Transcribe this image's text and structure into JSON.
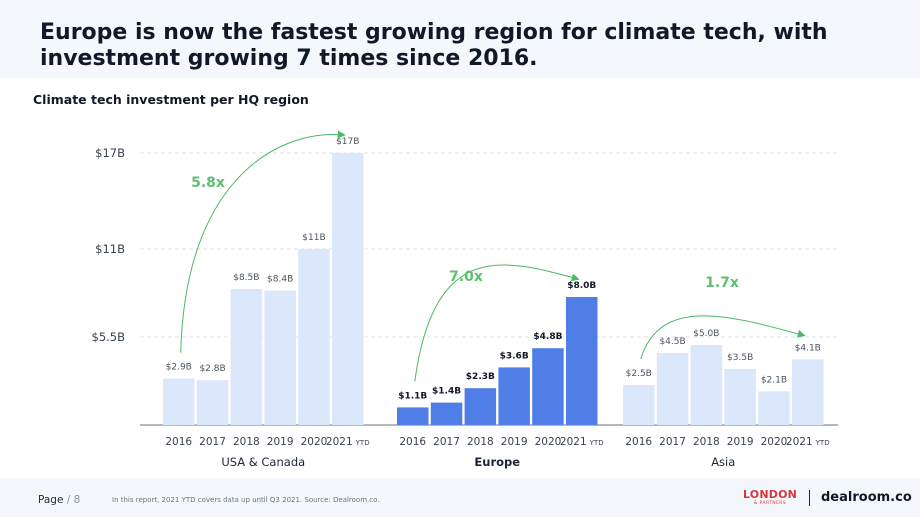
{
  "headline": "Europe is now the fastest growing region for climate tech, with investment growing 7 times since 2016.",
  "chart_title": "Climate tech investment per HQ region",
  "footer": {
    "page_word": "Page",
    "page_sep": "/",
    "page_number": "8",
    "note": "In this report, 2021 YTD covers data up until Q3 2021. Source: Dealroom.co.",
    "logo_primary": "LONDON",
    "logo_secondary": "& PARTNERS",
    "logo_dealroom": "dealroom.co"
  },
  "colors": {
    "light_bar": "#dbe7fb",
    "highlight_bar": "#4f7fe6",
    "arrow": "#4db866",
    "multiplier": "#5fbf72",
    "grid": "#d4d9e1"
  },
  "chart_data": {
    "type": "bar",
    "title": "Climate tech investment per HQ region",
    "ylabel": "",
    "xlabel": "",
    "unit": "B",
    "ylim": [
      0,
      17
    ],
    "y_ticks": [
      {
        "value": 5.5,
        "label": "$5.5B"
      },
      {
        "value": 11,
        "label": "$11B"
      },
      {
        "value": 17,
        "label": "$17B"
      }
    ],
    "grid": true,
    "groups": [
      {
        "name": "USA & Canada",
        "highlight": false,
        "multiplier": "5.8x",
        "categories": [
          "2016",
          "2017",
          "2018",
          "2019",
          "2020",
          "2021"
        ],
        "category_suffix": [
          "",
          "",
          "",
          "",
          "",
          "YTD"
        ],
        "values": [
          2.9,
          2.8,
          8.5,
          8.4,
          11,
          17
        ],
        "labels": [
          "$2.9B",
          "$2.8B",
          "$8.5B",
          "$8.4B",
          "$11B",
          "$17B"
        ]
      },
      {
        "name": "Europe",
        "highlight": true,
        "multiplier": "7.0x",
        "categories": [
          "2016",
          "2017",
          "2018",
          "2019",
          "2020",
          "2021"
        ],
        "category_suffix": [
          "",
          "",
          "",
          "",
          "",
          "YTD"
        ],
        "values": [
          1.1,
          1.4,
          2.3,
          3.6,
          4.8,
          8.0
        ],
        "labels": [
          "$1.1B",
          "$1.4B",
          "$2.3B",
          "$3.6B",
          "$4.8B",
          "$8.0B"
        ]
      },
      {
        "name": "Asia",
        "highlight": false,
        "multiplier": "1.7x",
        "categories": [
          "2016",
          "2017",
          "2018",
          "2019",
          "2020",
          "2021"
        ],
        "category_suffix": [
          "",
          "",
          "",
          "",
          "",
          "YTD"
        ],
        "values": [
          2.5,
          4.5,
          5.0,
          3.5,
          2.1,
          4.1
        ],
        "labels": [
          "$2.5B",
          "$4.5B",
          "$5.0B",
          "$3.5B",
          "$2.1B",
          "$4.1B"
        ]
      }
    ]
  }
}
